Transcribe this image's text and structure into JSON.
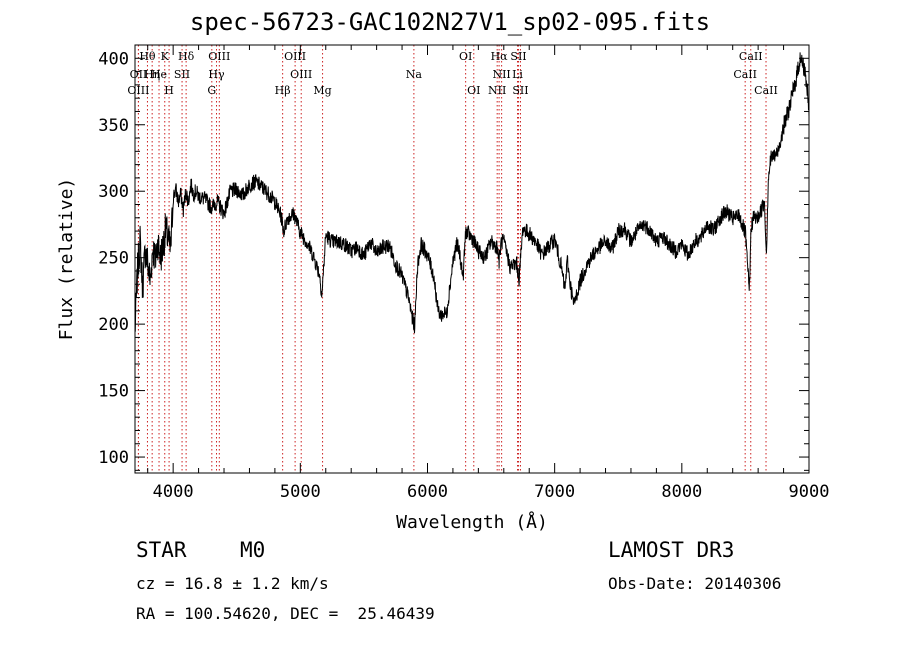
{
  "chart_data": {
    "type": "line",
    "title": "spec-56723-GAC102N27V1_sp02-095.fits",
    "xlabel": "Wavelength (Å)",
    "ylabel": "Flux (relative)",
    "xlim": [
      3700,
      9000
    ],
    "ylim": [
      88,
      410
    ],
    "x_ticks": [
      4000,
      5000,
      6000,
      7000,
      8000,
      9000
    ],
    "y_ticks": [
      100,
      150,
      200,
      250,
      300,
      350,
      400
    ],
    "series": [
      {
        "name": "spectrum",
        "x": [
          3700,
          3720,
          3740,
          3760,
          3780,
          3800,
          3820,
          3840,
          3860,
          3880,
          3900,
          3920,
          3940,
          3960,
          3980,
          4000,
          4020,
          4040,
          4060,
          4080,
          4100,
          4120,
          4140,
          4160,
          4180,
          4200,
          4250,
          4300,
          4350,
          4400,
          4450,
          4500,
          4550,
          4600,
          4650,
          4700,
          4750,
          4800,
          4850,
          4870,
          4900,
          4950,
          5000,
          5050,
          5100,
          5150,
          5170,
          5200,
          5250,
          5300,
          5350,
          5400,
          5450,
          5500,
          5550,
          5600,
          5650,
          5700,
          5750,
          5800,
          5850,
          5880,
          5900,
          5920,
          5950,
          6000,
          6050,
          6080,
          6100,
          6150,
          6200,
          6230,
          6250,
          6280,
          6300,
          6350,
          6400,
          6450,
          6500,
          6550,
          6563,
          6580,
          6600,
          6650,
          6700,
          6720,
          6750,
          6800,
          6850,
          6900,
          6950,
          7000,
          7050,
          7080,
          7100,
          7120,
          7150,
          7200,
          7250,
          7300,
          7350,
          7400,
          7450,
          7500,
          7550,
          7600,
          7650,
          7700,
          7750,
          7800,
          7850,
          7900,
          7950,
          8000,
          8050,
          8100,
          8150,
          8200,
          8250,
          8300,
          8350,
          8400,
          8450,
          8500,
          8530,
          8545,
          8560,
          8600,
          8650,
          8665,
          8680,
          8700,
          8750,
          8800,
          8850,
          8900,
          8930,
          8950,
          8970,
          8990,
          9000
        ],
        "y": [
          195,
          240,
          262,
          228,
          255,
          246,
          232,
          258,
          248,
          262,
          250,
          258,
          271,
          265,
          255,
          295,
          302,
          292,
          298,
          286,
          300,
          292,
          305,
          298,
          300,
          296,
          294,
          288,
          292,
          283,
          300,
          301,
          297,
          305,
          307,
          303,
          298,
          292,
          281,
          270,
          280,
          283,
          269,
          262,
          252,
          238,
          222,
          267,
          262,
          262,
          260,
          255,
          258,
          251,
          262,
          253,
          258,
          259,
          245,
          236,
          220,
          205,
          198,
          243,
          260,
          252,
          236,
          212,
          207,
          208,
          247,
          260,
          255,
          235,
          270,
          265,
          255,
          250,
          262,
          258,
          247,
          262,
          262,
          243,
          246,
          234,
          272,
          268,
          262,
          252,
          258,
          264,
          244,
          226,
          248,
          232,
          214,
          232,
          244,
          252,
          258,
          262,
          256,
          270,
          272,
          262,
          270,
          275,
          271,
          262,
          266,
          260,
          255,
          260,
          252,
          262,
          265,
          275,
          270,
          280,
          285,
          279,
          282,
          268,
          225,
          272,
          280,
          280,
          292,
          252,
          310,
          325,
          328,
          348,
          365,
          385,
          400,
          396,
          390,
          372,
          356
        ]
      }
    ],
    "line_markers": [
      {
        "label": "Hθ",
        "wl": 3798,
        "row": 1
      },
      {
        "label": "K",
        "wl": 3934,
        "row": 1
      },
      {
        "label": "Hδ",
        "wl": 4102,
        "row": 1
      },
      {
        "label": "OIII",
        "wl": 4363,
        "row": 1
      },
      {
        "label": "OIII",
        "wl": 4959,
        "row": 1
      },
      {
        "label": "OI",
        "wl": 6300,
        "row": 1
      },
      {
        "label": "Hα",
        "wl": 6563,
        "row": 1
      },
      {
        "label": "SII",
        "wl": 6716,
        "row": 1
      },
      {
        "label": "CaII",
        "wl": 8542,
        "row": 1
      },
      {
        "label": "OII",
        "wl": 3727,
        "row": 2
      },
      {
        "label": "He",
        "wl": 3889,
        "row": 2
      },
      {
        "label": "Hη",
        "wl": 3835,
        "row": 2
      },
      {
        "label": "SII",
        "wl": 4070,
        "row": 2
      },
      {
        "label": "Hγ",
        "wl": 4341,
        "row": 2
      },
      {
        "label": "OIII",
        "wl": 5007,
        "row": 2
      },
      {
        "label": "Na",
        "wl": 5893,
        "row": 2
      },
      {
        "label": "NII",
        "wl": 6583,
        "row": 2
      },
      {
        "label": "Li",
        "wl": 6708,
        "row": 2
      },
      {
        "label": "CaII",
        "wl": 8498,
        "row": 2
      },
      {
        "label": "OIII",
        "wl": 3727,
        "row": 3
      },
      {
        "label": "H",
        "wl": 3968,
        "row": 3
      },
      {
        "label": "G",
        "wl": 4304,
        "row": 3
      },
      {
        "label": "Hβ",
        "wl": 4861,
        "row": 3
      },
      {
        "label": "Mg",
        "wl": 5175,
        "row": 3
      },
      {
        "label": "OI",
        "wl": 6364,
        "row": 3
      },
      {
        "label": "NII",
        "wl": 6548,
        "row": 3
      },
      {
        "label": "SII",
        "wl": 6731,
        "row": 3
      },
      {
        "label": "CaII",
        "wl": 8662,
        "row": 3
      }
    ]
  },
  "info": {
    "class": "STAR",
    "subclass": "M0",
    "survey": "LAMOST DR3",
    "cz": "cz = 16.8 ± 1.2 km/s",
    "obs_date": "Obs-Date: 20140306",
    "coords": "RA = 100.54620, DEC =  25.46439"
  },
  "colors": {
    "spectrum": "#000000",
    "marker": "#cc2222"
  }
}
